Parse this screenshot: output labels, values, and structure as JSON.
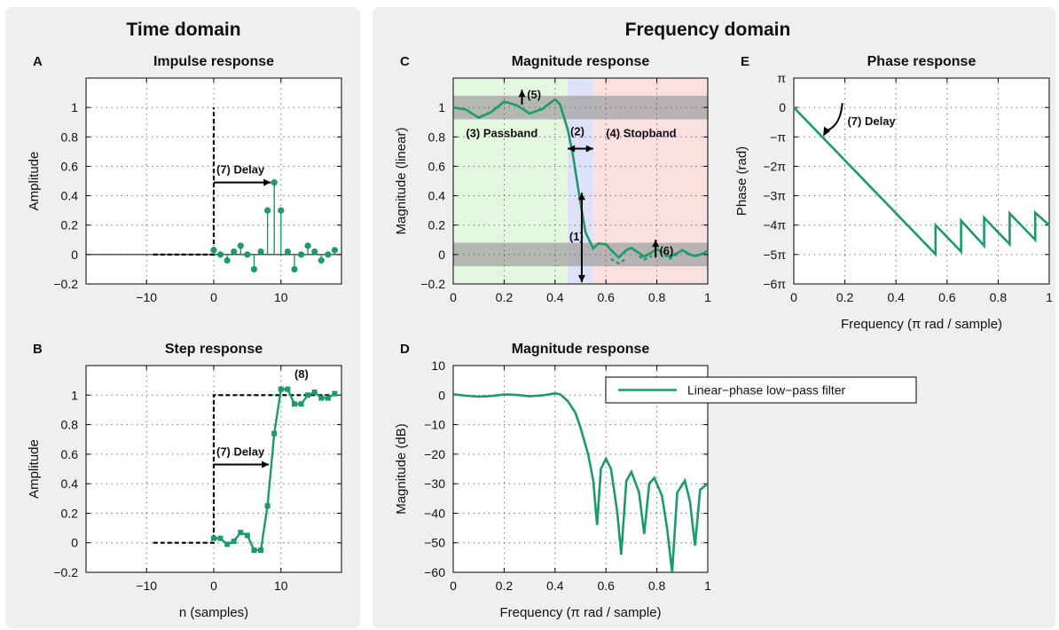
{
  "sections": {
    "time": "Time domain",
    "freq": "Frequency domain"
  },
  "colors": {
    "series": "#1d9a6c",
    "passband": "#e3f8df",
    "transition": "#dde2fa",
    "stopband": "#fbe0e0",
    "tolerance": "#a7a7a7"
  },
  "chart_data": [
    {
      "id": "A",
      "letter": "A",
      "type": "scatter",
      "title": "Impulse response",
      "xlabel": "",
      "ylabel": "Amplitude",
      "xlim": [
        -19,
        19
      ],
      "ylim": [
        -0.2,
        1.2
      ],
      "xticks": [
        -10,
        0,
        10
      ],
      "xticklabels": [
        "−10",
        "0",
        "10"
      ],
      "yticks": [
        -0.2,
        0,
        0.2,
        0.4,
        0.6,
        0.8,
        1
      ],
      "yticklabels": [
        "−0.2",
        "0",
        "0.2",
        "0.4",
        "0.6",
        "0.8",
        "1"
      ],
      "grid": true,
      "reference": {
        "x": [
          -9,
          0,
          0
        ],
        "y": [
          0,
          0,
          1
        ]
      },
      "x": [
        0,
        1,
        2,
        3,
        4,
        5,
        6,
        7,
        8,
        9,
        10,
        11,
        12,
        13,
        14,
        15,
        16,
        17,
        18
      ],
      "y": [
        0.03,
        0.0,
        -0.04,
        0.02,
        0.06,
        0.0,
        -0.1,
        0.02,
        0.3,
        0.49,
        0.3,
        0.02,
        -0.1,
        0.0,
        0.06,
        0.02,
        -0.04,
        0.0,
        0.03
      ],
      "annotations": {
        "delay": "(7) Delay"
      }
    },
    {
      "id": "B",
      "letter": "B",
      "type": "line",
      "title": "Step response",
      "xlabel": "n (samples)",
      "ylabel": "Amplitude",
      "xlim": [
        -19,
        19
      ],
      "ylim": [
        -0.2,
        1.2
      ],
      "xticks": [
        -10,
        0,
        10
      ],
      "xticklabels": [
        "−10",
        "0",
        "10"
      ],
      "yticks": [
        -0.2,
        0,
        0.2,
        0.4,
        0.6,
        0.8,
        1
      ],
      "yticklabels": [
        "−0.2",
        "0",
        "0.2",
        "0.4",
        "0.6",
        "0.8",
        "1"
      ],
      "grid": true,
      "reference": {
        "x": [
          -9,
          0,
          0,
          18
        ],
        "y": [
          0,
          0,
          1,
          1
        ]
      },
      "x": [
        0,
        1,
        2,
        3,
        4,
        5,
        6,
        7,
        8,
        9,
        10,
        11,
        12,
        13,
        14,
        15,
        16,
        17,
        18
      ],
      "y": [
        0.03,
        0.03,
        -0.01,
        0.01,
        0.07,
        0.05,
        -0.05,
        -0.05,
        0.25,
        0.74,
        1.04,
        1.04,
        0.94,
        0.94,
        1.0,
        1.02,
        0.98,
        0.98,
        1.01
      ],
      "annotations": {
        "delay": "(7) Delay",
        "ripple": "(8)"
      }
    },
    {
      "id": "C",
      "letter": "C",
      "type": "line",
      "title": "Magnitude response",
      "xlabel": "",
      "ylabel": "Magnitude (linear)",
      "xlim": [
        0,
        1
      ],
      "ylim": [
        -0.2,
        1.2
      ],
      "xticks": [
        0,
        0.2,
        0.4,
        0.6,
        0.8,
        1
      ],
      "xticklabels": [
        "0",
        "0.2",
        "0.4",
        "0.6",
        "0.8",
        "1"
      ],
      "yticks": [
        -0.2,
        0,
        0.2,
        0.4,
        0.6,
        0.8,
        1
      ],
      "yticklabels": [
        "−0.2",
        "0",
        "0.2",
        "0.4",
        "0.6",
        "0.8",
        "1"
      ],
      "grid": true,
      "bands": [
        {
          "x": [
            0,
            0.45
          ],
          "kind": "passband"
        },
        {
          "x": [
            0.45,
            0.55
          ],
          "kind": "transition"
        },
        {
          "x": [
            0.55,
            1
          ],
          "kind": "stopband"
        }
      ],
      "tolerance_bands": [
        [
          0.92,
          1.08
        ],
        [
          -0.08,
          0.08
        ]
      ],
      "x": [
        0,
        0.05,
        0.1,
        0.15,
        0.2,
        0.25,
        0.3,
        0.35,
        0.4,
        0.42,
        0.45,
        0.47,
        0.5,
        0.52,
        0.55,
        0.57,
        0.6,
        0.62,
        0.65,
        0.68,
        0.7,
        0.73,
        0.75,
        0.78,
        0.8,
        0.83,
        0.85,
        0.88,
        0.9,
        0.93,
        0.95,
        0.98,
        1
      ],
      "y": [
        1.0,
        0.985,
        0.93,
        0.97,
        1.04,
        1.015,
        0.96,
        0.99,
        1.055,
        1.02,
        0.85,
        0.68,
        0.35,
        0.15,
        0.04,
        0.075,
        0.07,
        0.03,
        -0.02,
        0.03,
        0.045,
        0.01,
        -0.015,
        0.015,
        0.035,
        0.01,
        -0.015,
        0.01,
        0.03,
        0.0,
        -0.01,
        0.005,
        0.025
      ],
      "annotations": {
        "a1": "(1)",
        "a2": "(2)",
        "a3": "(3) Passband",
        "a4": "(4) Stopband",
        "a5": "(5)",
        "a6": "(6)"
      }
    },
    {
      "id": "D",
      "letter": "D",
      "type": "line",
      "title": "Magnitude response",
      "xlabel": "Frequency (π rad / sample)",
      "ylabel": "Magnitude (dB)",
      "xlim": [
        0,
        1
      ],
      "ylim": [
        -60,
        10
      ],
      "xticks": [
        0,
        0.2,
        0.4,
        0.6,
        0.8,
        1
      ],
      "xticklabels": [
        "0",
        "0.2",
        "0.4",
        "0.6",
        "0.8",
        "1"
      ],
      "yticks": [
        -60,
        -50,
        -40,
        -30,
        -20,
        -10,
        0,
        10
      ],
      "yticklabels": [
        "−60",
        "−50",
        "−40",
        "−30",
        "−20",
        "−10",
        "0",
        "10"
      ],
      "grid": true,
      "x": [
        0,
        0.05,
        0.1,
        0.15,
        0.2,
        0.25,
        0.3,
        0.35,
        0.4,
        0.42,
        0.45,
        0.48,
        0.5,
        0.53,
        0.55,
        0.565,
        0.58,
        0.6,
        0.62,
        0.645,
        0.66,
        0.68,
        0.7,
        0.73,
        0.75,
        0.77,
        0.79,
        0.82,
        0.84,
        0.86,
        0.88,
        0.91,
        0.93,
        0.95,
        0.97,
        1
      ],
      "y": [
        0.3,
        -0.2,
        -0.5,
        -0.3,
        0.2,
        0.05,
        -0.4,
        -0.1,
        0.6,
        0.3,
        -2.0,
        -6.0,
        -11.0,
        -20.0,
        -29.0,
        -44.0,
        -25.0,
        -21.5,
        -25.0,
        -40.0,
        -54.0,
        -29.0,
        -26.0,
        -33.0,
        -47.0,
        -30.0,
        -28.0,
        -34.0,
        -45.0,
        -60.0,
        -33.0,
        -29.0,
        -36.0,
        -51.0,
        -32.0,
        -30.0
      ],
      "legend": {
        "label": "Linear−phase low−pass filter",
        "placement": "top-right"
      }
    },
    {
      "id": "E",
      "letter": "E",
      "type": "line",
      "title": "Phase response",
      "xlabel": "Frequency (π rad / sample)",
      "ylabel": "Phase (rad)",
      "xlim": [
        0,
        1
      ],
      "ylim": [
        -6,
        1
      ],
      "xticks": [
        0,
        0.2,
        0.4,
        0.6,
        0.8,
        1
      ],
      "xticklabels": [
        "0",
        "0.2",
        "0.4",
        "0.6",
        "0.8",
        "1"
      ],
      "yticks": [
        1,
        0,
        -1,
        -2,
        -3,
        -4,
        -5,
        -6
      ],
      "yticklabels": [
        "π",
        "0",
        "−π",
        "−2π",
        "−3π",
        "−4π",
        "−5π",
        "−6π"
      ],
      "grid": true,
      "x": [
        0,
        0.555,
        0.555,
        0.655,
        0.655,
        0.745,
        0.745,
        0.845,
        0.845,
        0.945,
        0.945,
        1
      ],
      "y": [
        0,
        -4.99,
        -4.0,
        -4.9,
        -3.85,
        -4.7,
        -3.75,
        -4.65,
        -3.6,
        -4.5,
        -3.58,
        -4.0
      ],
      "annotations": {
        "delay": "(7) Delay"
      }
    }
  ]
}
